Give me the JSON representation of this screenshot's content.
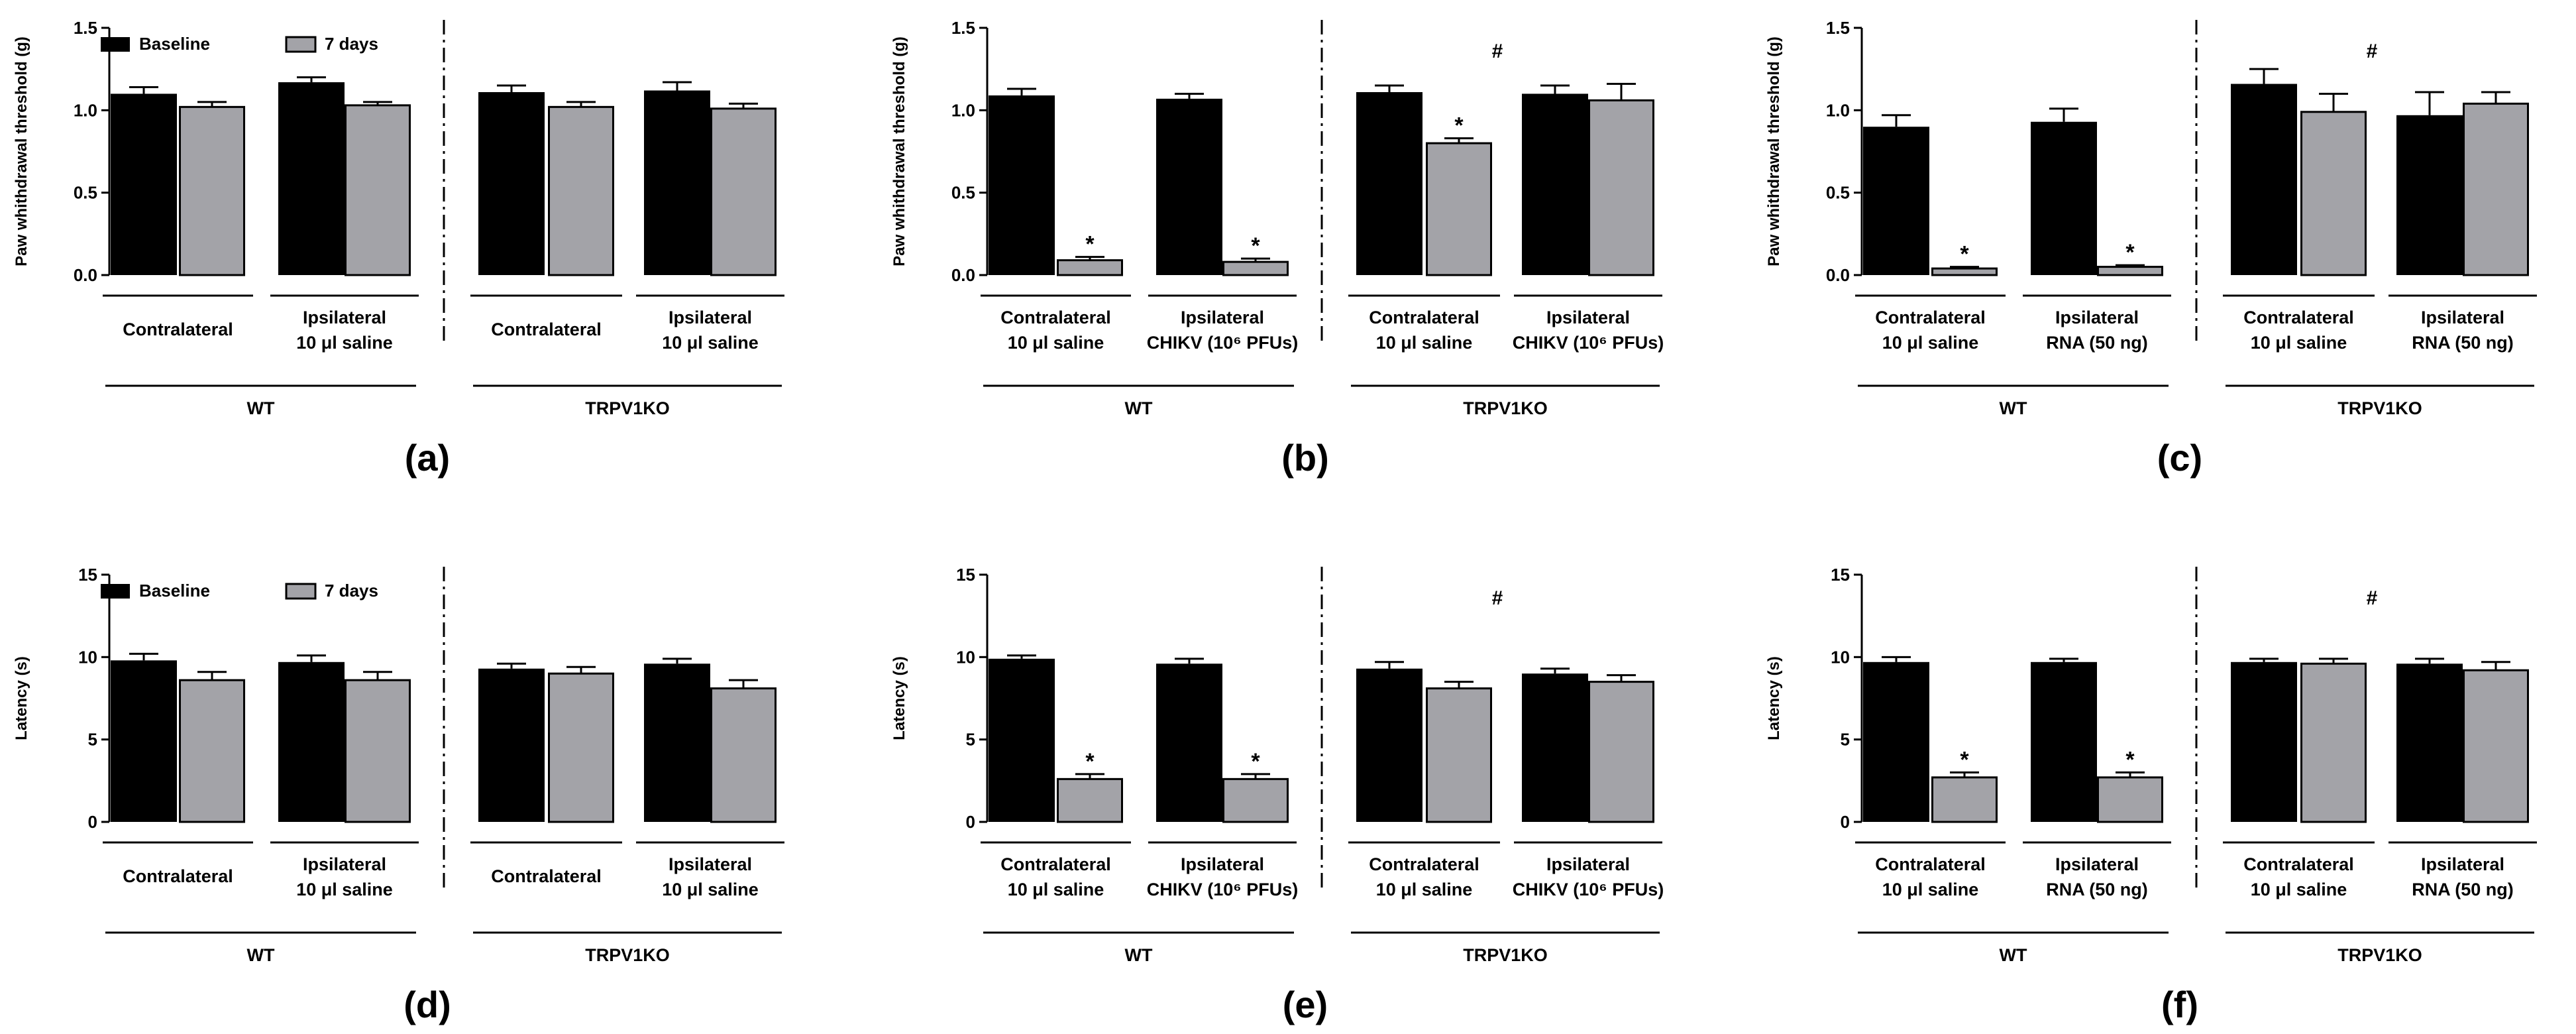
{
  "colors": {
    "baseline": "#000000",
    "seven_days": "#a3a3a8",
    "axis": "#000000"
  },
  "legend": {
    "baseline": "Baseline",
    "seven_days": "7 days"
  },
  "chart_data": [
    {
      "type": "bar",
      "panel_label": "(a)",
      "ylabel": "Paw whithdrawal threshold (g)",
      "ylim": [
        0,
        1.5
      ],
      "yticks": [
        "0.0",
        "0.5",
        "1.0",
        "1.5"
      ],
      "legend": true,
      "hash": false,
      "groups": [
        {
          "genotype": "WT",
          "separator": false,
          "pairs": [
            {
              "label": [
                "Contralateral",
                ""
              ],
              "baseline": 1.1,
              "baseline_err": 0.04,
              "seven_days": 1.02,
              "seven_days_err": 0.03,
              "star": false
            },
            {
              "label": [
                "Ipsilateral",
                "10 μl saline"
              ],
              "baseline": 1.17,
              "baseline_err": 0.03,
              "seven_days": 1.03,
              "seven_days_err": 0.02,
              "star": false
            }
          ]
        },
        {
          "genotype": "TRPV1KO",
          "separator": true,
          "pairs": [
            {
              "label": [
                "Contralateral",
                ""
              ],
              "baseline": 1.11,
              "baseline_err": 0.04,
              "seven_days": 1.02,
              "seven_days_err": 0.03,
              "star": false
            },
            {
              "label": [
                "Ipsilateral",
                "10 μl saline"
              ],
              "baseline": 1.12,
              "baseline_err": 0.05,
              "seven_days": 1.01,
              "seven_days_err": 0.03,
              "star": false
            }
          ]
        }
      ]
    },
    {
      "type": "bar",
      "panel_label": "(b)",
      "ylabel": "Paw whithdrawal threshold (g)",
      "ylim": [
        0,
        1.5
      ],
      "yticks": [
        "0.0",
        "0.5",
        "1.0",
        "1.5"
      ],
      "legend": false,
      "hash": true,
      "groups": [
        {
          "genotype": "WT",
          "separator": false,
          "pairs": [
            {
              "label": [
                "Contralateral",
                "10 μl saline"
              ],
              "baseline": 1.09,
              "baseline_err": 0.04,
              "seven_days": 0.09,
              "seven_days_err": 0.02,
              "star": true
            },
            {
              "label": [
                "Ipsilateral",
                "CHIKV (10⁶ PFUs)"
              ],
              "baseline": 1.07,
              "baseline_err": 0.03,
              "seven_days": 0.08,
              "seven_days_err": 0.02,
              "star": true
            }
          ]
        },
        {
          "genotype": "TRPV1KO",
          "separator": true,
          "pairs": [
            {
              "label": [
                "Contralateral",
                "10 μl saline"
              ],
              "baseline": 1.11,
              "baseline_err": 0.04,
              "seven_days": 0.8,
              "seven_days_err": 0.03,
              "star": true
            },
            {
              "label": [
                "Ipsilateral",
                "CHIKV (10⁶ PFUs)"
              ],
              "baseline": 1.1,
              "baseline_err": 0.05,
              "seven_days": 1.06,
              "seven_days_err": 0.1,
              "star": false
            }
          ]
        }
      ]
    },
    {
      "type": "bar",
      "panel_label": "(c)",
      "ylabel": "Paw whithdrawal threshold (g)",
      "ylim": [
        0,
        1.5
      ],
      "yticks": [
        "0.0",
        "0.5",
        "1.0",
        "1.5"
      ],
      "legend": false,
      "hash": true,
      "groups": [
        {
          "genotype": "WT",
          "separator": false,
          "pairs": [
            {
              "label": [
                "Contralateral",
                "10 μl saline"
              ],
              "baseline": 0.9,
              "baseline_err": 0.07,
              "seven_days": 0.04,
              "seven_days_err": 0.01,
              "star": true
            },
            {
              "label": [
                "Ipsilateral",
                "RNA (50 ng)"
              ],
              "baseline": 0.93,
              "baseline_err": 0.08,
              "seven_days": 0.05,
              "seven_days_err": 0.01,
              "star": true
            }
          ]
        },
        {
          "genotype": "TRPV1KO",
          "separator": true,
          "pairs": [
            {
              "label": [
                "Contralateral",
                "10 μl saline"
              ],
              "baseline": 1.16,
              "baseline_err": 0.09,
              "seven_days": 0.99,
              "seven_days_err": 0.11,
              "star": false
            },
            {
              "label": [
                "Ipsilateral",
                "RNA (50 ng)"
              ],
              "baseline": 0.97,
              "baseline_err": 0.14,
              "seven_days": 1.04,
              "seven_days_err": 0.07,
              "star": false
            }
          ]
        }
      ]
    },
    {
      "type": "bar",
      "panel_label": "(d)",
      "ylabel": "Latency (s)",
      "ylim": [
        0,
        15
      ],
      "yticks": [
        "0",
        "5",
        "10",
        "15"
      ],
      "legend": true,
      "hash": false,
      "groups": [
        {
          "genotype": "WT",
          "separator": false,
          "pairs": [
            {
              "label": [
                "Contralateral",
                ""
              ],
              "baseline": 9.8,
              "baseline_err": 0.4,
              "seven_days": 8.6,
              "seven_days_err": 0.5,
              "star": false
            },
            {
              "label": [
                "Ipsilateral",
                "10 μl saline"
              ],
              "baseline": 9.7,
              "baseline_err": 0.4,
              "seven_days": 8.6,
              "seven_days_err": 0.5,
              "star": false
            }
          ]
        },
        {
          "genotype": "TRPV1KO",
          "separator": true,
          "pairs": [
            {
              "label": [
                "Contralateral",
                ""
              ],
              "baseline": 9.3,
              "baseline_err": 0.3,
              "seven_days": 9.0,
              "seven_days_err": 0.4,
              "star": false
            },
            {
              "label": [
                "Ipsilateral",
                "10 μl saline"
              ],
              "baseline": 9.6,
              "baseline_err": 0.3,
              "seven_days": 8.1,
              "seven_days_err": 0.5,
              "star": false
            }
          ]
        }
      ]
    },
    {
      "type": "bar",
      "panel_label": "(e)",
      "ylabel": "Latency (s)",
      "ylim": [
        0,
        15
      ],
      "yticks": [
        "0",
        "5",
        "10",
        "15"
      ],
      "legend": false,
      "hash": true,
      "groups": [
        {
          "genotype": "WT",
          "separator": false,
          "pairs": [
            {
              "label": [
                "Contralateral",
                "10 μl saline"
              ],
              "baseline": 9.9,
              "baseline_err": 0.2,
              "seven_days": 2.6,
              "seven_days_err": 0.3,
              "star": true
            },
            {
              "label": [
                "Ipsilateral",
                "CHIKV (10⁶ PFUs)"
              ],
              "baseline": 9.6,
              "baseline_err": 0.3,
              "seven_days": 2.6,
              "seven_days_err": 0.3,
              "star": true
            }
          ]
        },
        {
          "genotype": "TRPV1KO",
          "separator": true,
          "pairs": [
            {
              "label": [
                "Contralateral",
                "10 μl saline"
              ],
              "baseline": 9.3,
              "baseline_err": 0.4,
              "seven_days": 8.1,
              "seven_days_err": 0.4,
              "star": false
            },
            {
              "label": [
                "Ipsilateral",
                "CHIKV (10⁶ PFUs)"
              ],
              "baseline": 9.0,
              "baseline_err": 0.3,
              "seven_days": 8.5,
              "seven_days_err": 0.4,
              "star": false
            }
          ]
        }
      ]
    },
    {
      "type": "bar",
      "panel_label": "(f)",
      "ylabel": "Latency (s)",
      "ylim": [
        0,
        15
      ],
      "yticks": [
        "0",
        "5",
        "10",
        "15"
      ],
      "legend": false,
      "hash": true,
      "groups": [
        {
          "genotype": "WT",
          "separator": false,
          "pairs": [
            {
              "label": [
                "Contralateral",
                "10 μl saline"
              ],
              "baseline": 9.7,
              "baseline_err": 0.3,
              "seven_days": 2.7,
              "seven_days_err": 0.3,
              "star": true
            },
            {
              "label": [
                "Ipsilateral",
                "RNA (50 ng)"
              ],
              "baseline": 9.7,
              "baseline_err": 0.2,
              "seven_days": 2.7,
              "seven_days_err": 0.3,
              "star": true
            }
          ]
        },
        {
          "genotype": "TRPV1KO",
          "separator": true,
          "pairs": [
            {
              "label": [
                "Contralateral",
                "10 μl saline"
              ],
              "baseline": 9.7,
              "baseline_err": 0.2,
              "seven_days": 9.6,
              "seven_days_err": 0.3,
              "star": false
            },
            {
              "label": [
                "Ipsilateral",
                "RNA (50 ng)"
              ],
              "baseline": 9.6,
              "baseline_err": 0.3,
              "seven_days": 9.2,
              "seven_days_err": 0.5,
              "star": false
            }
          ]
        }
      ]
    }
  ]
}
